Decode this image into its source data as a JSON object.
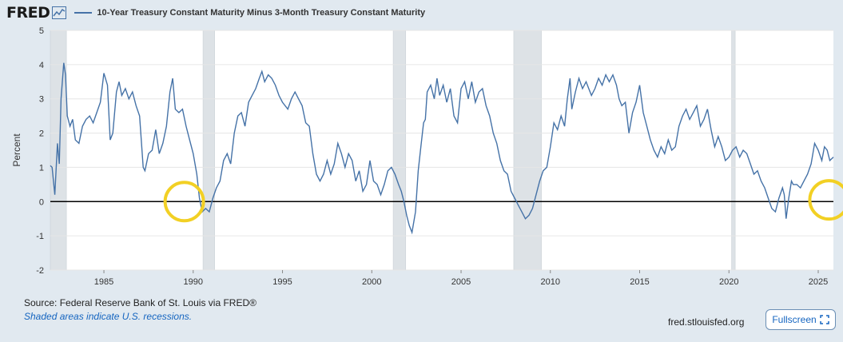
{
  "header": {
    "logo": "FRED",
    "legend_label": "10-Year Treasury Constant Maturity Minus 3-Month Treasury Constant Maturity"
  },
  "footer": {
    "source": "Source: Federal Reserve Bank of St. Louis via FRED®",
    "note": "Shaded areas indicate U.S. recessions.",
    "site": "fred.stlouisfed.org",
    "fullscreen_label": "Fullscreen"
  },
  "colors": {
    "series": "#4572a7",
    "recession": "#dde2e6",
    "highlight": "#f2d024",
    "zero_line": "#000000"
  },
  "chart_data": {
    "type": "line",
    "title": "10-Year Treasury Constant Maturity Minus 3-Month Treasury Constant Maturity",
    "xlabel": "",
    "ylabel": "Percent",
    "xlim": [
      1982.0,
      2025.85
    ],
    "ylim": [
      -2,
      5
    ],
    "xticks": [
      1985,
      1990,
      1995,
      2000,
      2005,
      2010,
      2015,
      2020,
      2025
    ],
    "yticks": [
      -2,
      -1,
      0,
      1,
      2,
      3,
      4,
      5
    ],
    "ytick_labels": [
      "-2",
      "-1",
      "0",
      "1",
      "2",
      "3",
      "4",
      "5"
    ],
    "grid": true,
    "recessions": [
      [
        1982.0,
        1982.9
      ],
      [
        1990.55,
        1991.2
      ],
      [
        2001.2,
        2001.9
      ],
      [
        2007.95,
        2009.5
      ],
      [
        2020.15,
        2020.35
      ]
    ],
    "highlights": [
      {
        "x": 1989.5,
        "y": 0.0
      },
      {
        "x": 2025.6,
        "y": 0.05
      }
    ],
    "reference_line": 0,
    "series": [
      {
        "name": "10-Year Treasury Constant Maturity Minus 3-Month Treasury Constant Maturity",
        "points": [
          [
            1982.0,
            1.05
          ],
          [
            1982.1,
            1.0
          ],
          [
            1982.25,
            0.2
          ],
          [
            1982.4,
            1.7
          ],
          [
            1982.5,
            1.1
          ],
          [
            1982.6,
            3.0
          ],
          [
            1982.75,
            4.05
          ],
          [
            1982.85,
            3.7
          ],
          [
            1982.95,
            2.5
          ],
          [
            1983.1,
            2.2
          ],
          [
            1983.25,
            2.4
          ],
          [
            1983.4,
            1.8
          ],
          [
            1983.6,
            1.7
          ],
          [
            1983.8,
            2.2
          ],
          [
            1984.0,
            2.4
          ],
          [
            1984.2,
            2.5
          ],
          [
            1984.4,
            2.3
          ],
          [
            1984.6,
            2.6
          ],
          [
            1984.8,
            2.9
          ],
          [
            1985.0,
            3.75
          ],
          [
            1985.2,
            3.4
          ],
          [
            1985.35,
            1.8
          ],
          [
            1985.5,
            2.0
          ],
          [
            1985.7,
            3.2
          ],
          [
            1985.85,
            3.5
          ],
          [
            1986.0,
            3.1
          ],
          [
            1986.2,
            3.3
          ],
          [
            1986.4,
            3.0
          ],
          [
            1986.6,
            3.2
          ],
          [
            1986.8,
            2.8
          ],
          [
            1987.0,
            2.5
          ],
          [
            1987.2,
            1.0
          ],
          [
            1987.3,
            0.9
          ],
          [
            1987.5,
            1.4
          ],
          [
            1987.7,
            1.5
          ],
          [
            1987.9,
            2.1
          ],
          [
            1988.1,
            1.4
          ],
          [
            1988.3,
            1.7
          ],
          [
            1988.5,
            2.2
          ],
          [
            1988.7,
            3.2
          ],
          [
            1988.85,
            3.6
          ],
          [
            1989.0,
            2.7
          ],
          [
            1989.2,
            2.6
          ],
          [
            1989.4,
            2.7
          ],
          [
            1989.6,
            2.2
          ],
          [
            1989.8,
            1.8
          ],
          [
            1990.0,
            1.4
          ],
          [
            1990.2,
            0.8
          ],
          [
            1990.35,
            0.1
          ],
          [
            1990.5,
            -0.3
          ],
          [
            1990.7,
            -0.2
          ],
          [
            1990.9,
            -0.3
          ],
          [
            1991.1,
            0.1
          ],
          [
            1991.3,
            0.4
          ],
          [
            1991.5,
            0.6
          ],
          [
            1991.7,
            1.2
          ],
          [
            1991.9,
            1.4
          ],
          [
            1992.1,
            1.1
          ],
          [
            1992.3,
            2.0
          ],
          [
            1992.5,
            2.5
          ],
          [
            1992.7,
            2.6
          ],
          [
            1992.9,
            2.2
          ],
          [
            1993.1,
            2.9
          ],
          [
            1993.3,
            3.1
          ],
          [
            1993.5,
            3.3
          ],
          [
            1993.7,
            3.6
          ],
          [
            1993.85,
            3.8
          ],
          [
            1994.0,
            3.5
          ],
          [
            1994.2,
            3.7
          ],
          [
            1994.4,
            3.6
          ],
          [
            1994.6,
            3.4
          ],
          [
            1994.8,
            3.1
          ],
          [
            1995.0,
            2.9
          ],
          [
            1995.3,
            2.7
          ],
          [
            1995.5,
            3.0
          ],
          [
            1995.7,
            3.2
          ],
          [
            1995.9,
            3.0
          ],
          [
            1996.1,
            2.8
          ],
          [
            1996.3,
            2.3
          ],
          [
            1996.5,
            2.2
          ],
          [
            1996.7,
            1.4
          ],
          [
            1996.9,
            0.8
          ],
          [
            1997.1,
            0.6
          ],
          [
            1997.3,
            0.8
          ],
          [
            1997.5,
            1.2
          ],
          [
            1997.7,
            0.8
          ],
          [
            1997.9,
            1.1
          ],
          [
            1998.1,
            1.7
          ],
          [
            1998.3,
            1.4
          ],
          [
            1998.5,
            1.0
          ],
          [
            1998.7,
            1.4
          ],
          [
            1998.9,
            1.2
          ],
          [
            1999.1,
            0.6
          ],
          [
            1999.3,
            0.9
          ],
          [
            1999.5,
            0.3
          ],
          [
            1999.7,
            0.5
          ],
          [
            1999.9,
            1.2
          ],
          [
            2000.1,
            0.6
          ],
          [
            2000.3,
            0.5
          ],
          [
            2000.5,
            0.2
          ],
          [
            2000.7,
            0.5
          ],
          [
            2000.9,
            0.9
          ],
          [
            2001.1,
            1.0
          ],
          [
            2001.3,
            0.8
          ],
          [
            2001.5,
            0.5
          ],
          [
            2001.65,
            0.3
          ],
          [
            2001.8,
            0.0
          ],
          [
            2001.95,
            -0.4
          ],
          [
            2002.1,
            -0.7
          ],
          [
            2002.25,
            -0.9
          ],
          [
            2002.45,
            -0.3
          ],
          [
            2002.6,
            0.9
          ],
          [
            2002.75,
            1.6
          ],
          [
            2002.9,
            2.3
          ],
          [
            2003.0,
            2.4
          ],
          [
            2003.1,
            3.2
          ],
          [
            2003.3,
            3.4
          ],
          [
            2003.5,
            3.0
          ],
          [
            2003.65,
            3.6
          ],
          [
            2003.8,
            3.1
          ],
          [
            2004.0,
            3.4
          ],
          [
            2004.2,
            2.9
          ],
          [
            2004.4,
            3.3
          ],
          [
            2004.6,
            2.5
          ],
          [
            2004.8,
            2.3
          ],
          [
            2005.0,
            3.3
          ],
          [
            2005.2,
            3.5
          ],
          [
            2005.4,
            3.0
          ],
          [
            2005.6,
            3.5
          ],
          [
            2005.8,
            2.9
          ],
          [
            2006.0,
            3.2
          ],
          [
            2006.2,
            3.3
          ],
          [
            2006.4,
            2.8
          ],
          [
            2006.6,
            2.5
          ],
          [
            2006.8,
            2.0
          ],
          [
            2007.0,
            1.7
          ],
          [
            2007.2,
            1.2
          ],
          [
            2007.4,
            0.9
          ],
          [
            2007.6,
            0.8
          ],
          [
            2007.8,
            0.3
          ],
          [
            2008.0,
            0.1
          ],
          [
            2008.2,
            -0.1
          ],
          [
            2008.4,
            -0.3
          ],
          [
            2008.6,
            -0.5
          ],
          [
            2008.8,
            -0.4
          ],
          [
            2009.0,
            -0.2
          ],
          [
            2009.2,
            0.2
          ],
          [
            2009.4,
            0.6
          ],
          [
            2009.6,
            0.9
          ],
          [
            2009.8,
            1.0
          ],
          [
            2010.0,
            1.6
          ],
          [
            2010.2,
            2.3
          ],
          [
            2010.4,
            2.1
          ],
          [
            2010.6,
            2.5
          ],
          [
            2010.8,
            2.2
          ],
          [
            2010.95,
            3.0
          ],
          [
            2011.1,
            3.6
          ],
          [
            2011.2,
            2.7
          ],
          [
            2011.4,
            3.2
          ],
          [
            2011.6,
            3.6
          ],
          [
            2011.8,
            3.3
          ],
          [
            2012.0,
            3.5
          ],
          [
            2012.15,
            3.3
          ],
          [
            2012.3,
            3.1
          ],
          [
            2012.5,
            3.3
          ],
          [
            2012.7,
            3.6
          ],
          [
            2012.9,
            3.4
          ],
          [
            2013.1,
            3.7
          ],
          [
            2013.3,
            3.5
          ],
          [
            2013.5,
            3.7
          ],
          [
            2013.7,
            3.4
          ],
          [
            2013.85,
            3.0
          ],
          [
            2014.0,
            2.8
          ],
          [
            2014.2,
            2.9
          ],
          [
            2014.4,
            2.0
          ],
          [
            2014.6,
            2.6
          ],
          [
            2014.8,
            2.9
          ],
          [
            2015.0,
            3.4
          ],
          [
            2015.2,
            2.6
          ],
          [
            2015.4,
            2.2
          ],
          [
            2015.6,
            1.8
          ],
          [
            2015.8,
            1.5
          ],
          [
            2016.0,
            1.3
          ],
          [
            2016.2,
            1.6
          ],
          [
            2016.4,
            1.4
          ],
          [
            2016.6,
            1.8
          ],
          [
            2016.8,
            1.5
          ],
          [
            2017.0,
            1.6
          ],
          [
            2017.2,
            2.2
          ],
          [
            2017.4,
            2.5
          ],
          [
            2017.6,
            2.7
          ],
          [
            2017.8,
            2.4
          ],
          [
            2018.0,
            2.6
          ],
          [
            2018.2,
            2.8
          ],
          [
            2018.4,
            2.2
          ],
          [
            2018.6,
            2.4
          ],
          [
            2018.8,
            2.7
          ],
          [
            2019.0,
            2.1
          ],
          [
            2019.2,
            1.6
          ],
          [
            2019.4,
            1.9
          ],
          [
            2019.6,
            1.6
          ],
          [
            2019.8,
            1.2
          ],
          [
            2020.0,
            1.3
          ],
          [
            2020.2,
            1.5
          ],
          [
            2020.4,
            1.6
          ],
          [
            2020.6,
            1.3
          ],
          [
            2020.8,
            1.5
          ],
          [
            2021.0,
            1.4
          ],
          [
            2021.2,
            1.1
          ],
          [
            2021.4,
            0.8
          ],
          [
            2021.6,
            0.9
          ],
          [
            2021.8,
            0.6
          ],
          [
            2022.0,
            0.4
          ],
          [
            2022.2,
            0.1
          ],
          [
            2022.4,
            -0.2
          ],
          [
            2022.6,
            -0.3
          ],
          [
            2022.8,
            0.1
          ],
          [
            2023.0,
            0.4
          ],
          [
            2023.1,
            0.2
          ],
          [
            2023.2,
            -0.5
          ],
          [
            2023.35,
            0.1
          ],
          [
            2023.5,
            0.6
          ],
          [
            2023.6,
            0.5
          ],
          [
            2023.8,
            0.5
          ],
          [
            2024.0,
            0.4
          ],
          [
            2024.2,
            0.6
          ],
          [
            2024.4,
            0.8
          ],
          [
            2024.6,
            1.1
          ],
          [
            2024.8,
            1.7
          ],
          [
            2025.0,
            1.5
          ],
          [
            2025.2,
            1.2
          ],
          [
            2025.35,
            1.6
          ],
          [
            2025.5,
            1.5
          ],
          [
            2025.65,
            1.2
          ],
          [
            2025.85,
            1.3
          ]
        ]
      }
    ]
  }
}
